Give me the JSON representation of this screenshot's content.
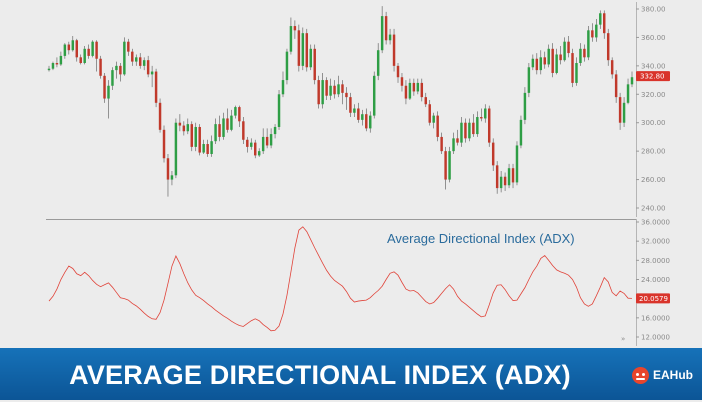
{
  "chart_data": [
    {
      "type": "candlestick",
      "title": "",
      "ylim": [
        240,
        380
      ],
      "yticks": [
        240,
        260,
        280,
        300,
        320,
        340,
        360,
        380
      ],
      "ytick_labels": [
        "240.00",
        "260.00",
        "280.00",
        "300.00",
        "320.00",
        "340.00",
        "360.00",
        "380.00"
      ],
      "last_value": 332.8,
      "last_value_label": "332.80",
      "grid": false,
      "colors": {
        "up": "#2e9e45",
        "down": "#c0392b",
        "label_bg": "#d9342b"
      },
      "candles": [
        [
          337,
          338,
          340,
          336
        ],
        [
          338,
          342,
          343,
          337
        ],
        [
          342,
          341,
          346,
          339
        ],
        [
          341,
          347,
          350,
          340
        ],
        [
          347,
          355,
          356,
          345
        ],
        [
          355,
          351,
          357,
          348
        ],
        [
          351,
          358,
          361,
          350
        ],
        [
          358,
          346,
          359,
          343
        ],
        [
          346,
          342,
          348,
          341
        ],
        [
          342,
          352,
          354,
          341
        ],
        [
          352,
          347,
          355,
          345
        ],
        [
          347,
          357,
          358,
          346
        ],
        [
          357,
          345,
          358,
          336
        ],
        [
          345,
          333,
          347,
          331
        ],
        [
          333,
          317,
          335,
          314
        ],
        [
          317,
          326,
          330,
          303
        ],
        [
          326,
          337,
          339,
          323
        ],
        [
          337,
          340,
          343,
          331
        ],
        [
          340,
          334,
          342,
          329
        ],
        [
          334,
          357,
          360,
          333
        ],
        [
          357,
          350,
          359,
          347
        ],
        [
          350,
          343,
          352,
          340
        ],
        [
          343,
          346,
          348,
          340
        ],
        [
          346,
          340,
          349,
          338
        ],
        [
          340,
          344,
          346,
          337
        ],
        [
          344,
          334,
          347,
          332
        ],
        [
          334,
          336,
          340,
          325
        ],
        [
          336,
          314,
          338,
          311
        ],
        [
          314,
          295,
          317,
          293
        ],
        [
          295,
          275,
          298,
          272
        ],
        [
          275,
          260,
          278,
          248
        ],
        [
          260,
          263,
          266,
          256
        ],
        [
          263,
          300,
          303,
          261
        ],
        [
          300,
          298,
          306,
          294
        ],
        [
          298,
          294,
          301,
          291
        ],
        [
          294,
          299,
          303,
          292
        ],
        [
          299,
          283,
          301,
          280
        ],
        [
          283,
          297,
          300,
          280
        ],
        [
          297,
          279,
          299,
          277
        ],
        [
          279,
          285,
          288,
          278
        ],
        [
          285,
          278,
          288,
          276
        ],
        [
          278,
          287,
          291,
          276
        ],
        [
          287,
          299,
          303,
          285
        ],
        [
          299,
          290,
          305,
          287
        ],
        [
          290,
          303,
          307,
          288
        ],
        [
          303,
          295,
          310,
          293
        ],
        [
          295,
          305,
          309,
          294
        ],
        [
          305,
          311,
          312,
          303
        ],
        [
          311,
          301,
          312,
          297
        ],
        [
          301,
          288,
          304,
          285
        ],
        [
          288,
          283,
          290,
          279
        ],
        [
          283,
          286,
          289,
          281
        ],
        [
          286,
          277,
          288,
          275
        ],
        [
          277,
          280,
          282,
          276
        ],
        [
          280,
          290,
          296,
          278
        ],
        [
          290,
          284,
          296,
          282
        ],
        [
          284,
          292,
          296,
          282
        ],
        [
          292,
          297,
          299,
          289
        ],
        [
          297,
          320,
          323,
          295
        ],
        [
          320,
          330,
          336,
          318
        ],
        [
          330,
          350,
          352,
          327
        ],
        [
          350,
          368,
          374,
          348
        ],
        [
          368,
          365,
          372,
          359
        ],
        [
          365,
          340,
          369,
          336
        ],
        [
          340,
          363,
          367,
          337
        ],
        [
          363,
          339,
          366,
          336
        ],
        [
          339,
          352,
          355,
          337
        ],
        [
          352,
          330,
          355,
          327
        ],
        [
          330,
          313,
          333,
          310
        ],
        [
          313,
          330,
          335,
          310
        ],
        [
          330,
          319,
          332,
          316
        ],
        [
          319,
          326,
          331,
          316
        ],
        [
          326,
          320,
          330,
          317
        ],
        [
          320,
          327,
          333,
          318
        ],
        [
          327,
          321,
          330,
          313
        ],
        [
          321,
          318,
          325,
          309
        ],
        [
          318,
          307,
          321,
          304
        ],
        [
          307,
          310,
          313,
          304
        ],
        [
          310,
          302,
          314,
          300
        ],
        [
          302,
          306,
          309,
          298
        ],
        [
          306,
          296,
          310,
          294
        ],
        [
          296,
          305,
          308,
          293
        ],
        [
          305,
          333,
          336,
          303
        ],
        [
          333,
          351,
          356,
          330
        ],
        [
          351,
          375,
          382,
          349
        ],
        [
          375,
          358,
          378,
          355
        ],
        [
          358,
          362,
          366,
          355
        ],
        [
          362,
          340,
          366,
          336
        ],
        [
          340,
          332,
          342,
          328
        ],
        [
          332,
          326,
          335,
          322
        ],
        [
          326,
          317,
          330,
          313
        ],
        [
          317,
          328,
          331,
          316
        ],
        [
          328,
          322,
          331,
          319
        ],
        [
          322,
          328,
          331,
          320
        ],
        [
          328,
          318,
          331,
          315
        ],
        [
          318,
          313,
          321,
          311
        ],
        [
          313,
          300,
          316,
          298
        ],
        [
          300,
          305,
          307,
          296
        ],
        [
          305,
          290,
          308,
          287
        ],
        [
          290,
          280,
          293,
          278
        ],
        [
          280,
          260,
          283,
          253
        ],
        [
          260,
          280,
          283,
          258
        ],
        [
          280,
          289,
          293,
          278
        ],
        [
          289,
          286,
          295,
          284
        ],
        [
          286,
          300,
          304,
          283
        ],
        [
          300,
          289,
          303,
          286
        ],
        [
          289,
          300,
          303,
          287
        ],
        [
          300,
          292,
          306,
          290
        ],
        [
          292,
          304,
          308,
          290
        ],
        [
          304,
          303,
          310,
          301
        ],
        [
          303,
          310,
          313,
          300
        ],
        [
          310,
          286,
          312,
          283
        ],
        [
          286,
          270,
          289,
          266
        ],
        [
          270,
          254,
          273,
          250
        ],
        [
          254,
          262,
          266,
          251
        ],
        [
          262,
          256,
          265,
          252
        ],
        [
          256,
          268,
          271,
          254
        ],
        [
          268,
          258,
          271,
          254
        ],
        [
          258,
          284,
          287,
          256
        ],
        [
          284,
          302,
          305,
          282
        ],
        [
          302,
          321,
          325,
          299
        ],
        [
          321,
          339,
          342,
          318
        ],
        [
          339,
          345,
          348,
          337
        ],
        [
          345,
          337,
          349,
          334
        ],
        [
          337,
          346,
          351,
          334
        ],
        [
          346,
          341,
          350,
          338
        ],
        [
          341,
          352,
          355,
          339
        ],
        [
          352,
          335,
          356,
          332
        ],
        [
          335,
          348,
          352,
          334
        ],
        [
          348,
          344,
          354,
          341
        ],
        [
          344,
          357,
          360,
          343
        ],
        [
          357,
          349,
          361,
          346
        ],
        [
          349,
          328,
          352,
          325
        ],
        [
          328,
          342,
          346,
          326
        ],
        [
          342,
          352,
          356,
          340
        ],
        [
          352,
          346,
          355,
          343
        ],
        [
          346,
          365,
          368,
          344
        ],
        [
          365,
          360,
          370,
          357
        ],
        [
          360,
          369,
          373,
          357
        ],
        [
          369,
          377,
          379,
          366
        ],
        [
          377,
          363,
          379,
          359
        ],
        [
          363,
          344,
          366,
          340
        ],
        [
          344,
          334,
          346,
          331
        ],
        [
          334,
          318,
          337,
          314
        ],
        [
          318,
          300,
          321,
          295
        ],
        [
          300,
          314,
          318,
          297
        ],
        [
          314,
          327,
          331,
          313
        ],
        [
          327,
          332,
          336,
          325
        ]
      ]
    },
    {
      "type": "line",
      "title": "Average Directional Index (ADX)",
      "ylim": [
        12,
        36
      ],
      "yticks": [
        12,
        16,
        20,
        24,
        28,
        32,
        36
      ],
      "ytick_labels": [
        "12.0000",
        "16.0000",
        "20.0000",
        "24.0000",
        "28.0000",
        "32.0000",
        "36.0000"
      ],
      "last_value": 20.0579,
      "last_value_label": "20.0579",
      "grid": false,
      "colors": {
        "line": "#e0443a",
        "label_bg": "#d9342b"
      },
      "values": [
        19.5,
        20.5,
        22.0,
        24.0,
        25.5,
        26.8,
        26.3,
        25.2,
        24.8,
        25.5,
        24.8,
        23.8,
        23.0,
        22.5,
        22.9,
        23.3,
        22.4,
        21.3,
        20.2,
        20.0,
        19.7,
        19.0,
        18.5,
        17.8,
        17.0,
        16.3,
        15.8,
        15.7,
        17.1,
        19.7,
        23.2,
        26.8,
        28.9,
        27.3,
        25.2,
        23.3,
        21.8,
        20.7,
        20.2,
        19.6,
        18.9,
        18.3,
        17.6,
        17.0,
        16.4,
        15.9,
        15.3,
        14.8,
        14.4,
        14.2,
        14.8,
        15.4,
        15.8,
        15.4,
        14.6,
        14.0,
        13.3,
        13.4,
        14.3,
        16.8,
        20.7,
        25.6,
        30.6,
        34.3,
        35.0,
        34.0,
        32.3,
        30.6,
        29.0,
        27.4,
        25.9,
        24.7,
        23.8,
        23.2,
        22.6,
        21.5,
        20.1,
        19.3,
        19.5,
        19.6,
        19.7,
        20.2,
        21.0,
        21.7,
        22.6,
        24.0,
        25.3,
        25.6,
        24.9,
        23.4,
        22.0,
        21.6,
        21.7,
        21.2,
        20.3,
        19.4,
        18.9,
        19.2,
        20.1,
        21.1,
        22.1,
        22.9,
        22.0,
        20.5,
        19.5,
        18.9,
        18.2,
        17.5,
        16.8,
        16.2,
        16.4,
        18.7,
        21.2,
        22.8,
        22.9,
        21.9,
        20.6,
        19.6,
        19.7,
        21.0,
        22.3,
        24.0,
        25.6,
        26.8,
        28.4,
        29.0,
        28.0,
        26.9,
        26.0,
        25.6,
        25.3,
        24.9,
        24.0,
        22.4,
        20.2,
        18.9,
        18.4,
        18.9,
        20.6,
        22.4,
        24.4,
        23.5,
        21.3,
        20.6,
        21.6,
        21.1,
        20.1,
        20.06
      ]
    }
  ],
  "banner": {
    "title": "AVERAGE DIRECTIONAL INDEX (ADX)",
    "brand_text": "EAHub",
    "brand_icon": "eahub-logo-icon"
  },
  "scroll_marker": "»"
}
